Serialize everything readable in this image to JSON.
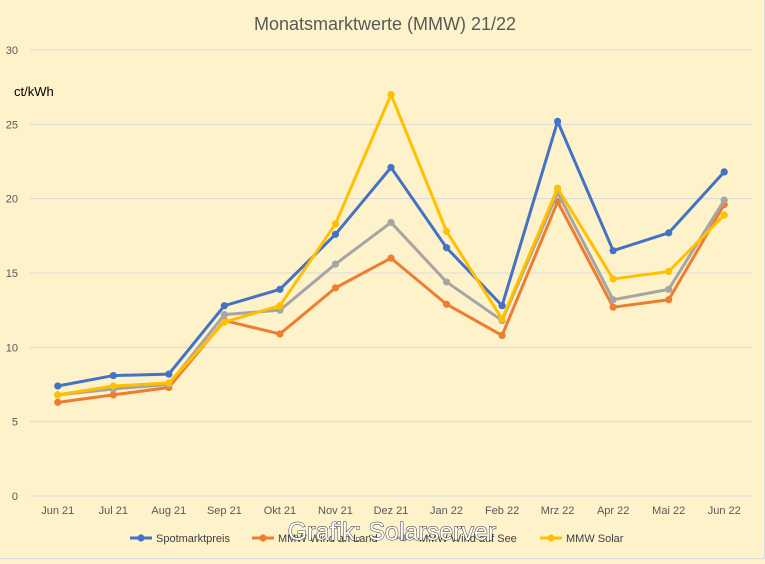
{
  "chart_data": {
    "type": "line",
    "title": "Monatsmarktwerte (MMW) 21/22",
    "ylabel": "ct/kWh",
    "xlabel": "",
    "ylim": [
      0,
      30
    ],
    "yticks": [
      0,
      5,
      10,
      15,
      20,
      25,
      30
    ],
    "grid": true,
    "legend_position": "bottom",
    "categories": [
      "Jun 21",
      "Jul 21",
      "Aug 21",
      "Sep 21",
      "Okt 21",
      "Nov 21",
      "Dez 21",
      "Jan 22",
      "Feb 22",
      "Mrz 22",
      "Apr 22",
      "Mai 22",
      "Jun 22"
    ],
    "series": [
      {
        "name": "Spotmarktpreis",
        "color": "#4472c4",
        "values": [
          7.4,
          8.1,
          8.2,
          12.8,
          13.9,
          17.6,
          22.1,
          16.7,
          12.8,
          25.2,
          16.5,
          17.7,
          21.8
        ]
      },
      {
        "name": "MMW Wind an Land",
        "color": "#ed7d31",
        "values": [
          6.3,
          6.8,
          7.3,
          11.8,
          10.9,
          14.0,
          16.0,
          12.9,
          10.8,
          19.8,
          12.7,
          13.2,
          19.6
        ]
      },
      {
        "name": "MMW Wind auf See",
        "color": "#a5a5a5",
        "values": [
          6.8,
          7.2,
          7.5,
          12.2,
          12.5,
          15.6,
          18.4,
          14.4,
          11.8,
          20.4,
          13.2,
          13.9,
          19.9
        ]
      },
      {
        "name": "MMW Solar",
        "color": "#ffc000",
        "values": [
          6.8,
          7.4,
          7.6,
          11.7,
          12.8,
          18.3,
          27.0,
          17.8,
          11.9,
          20.7,
          14.6,
          15.1,
          18.9
        ]
      }
    ]
  },
  "watermark": "Grafik: Solarserver"
}
